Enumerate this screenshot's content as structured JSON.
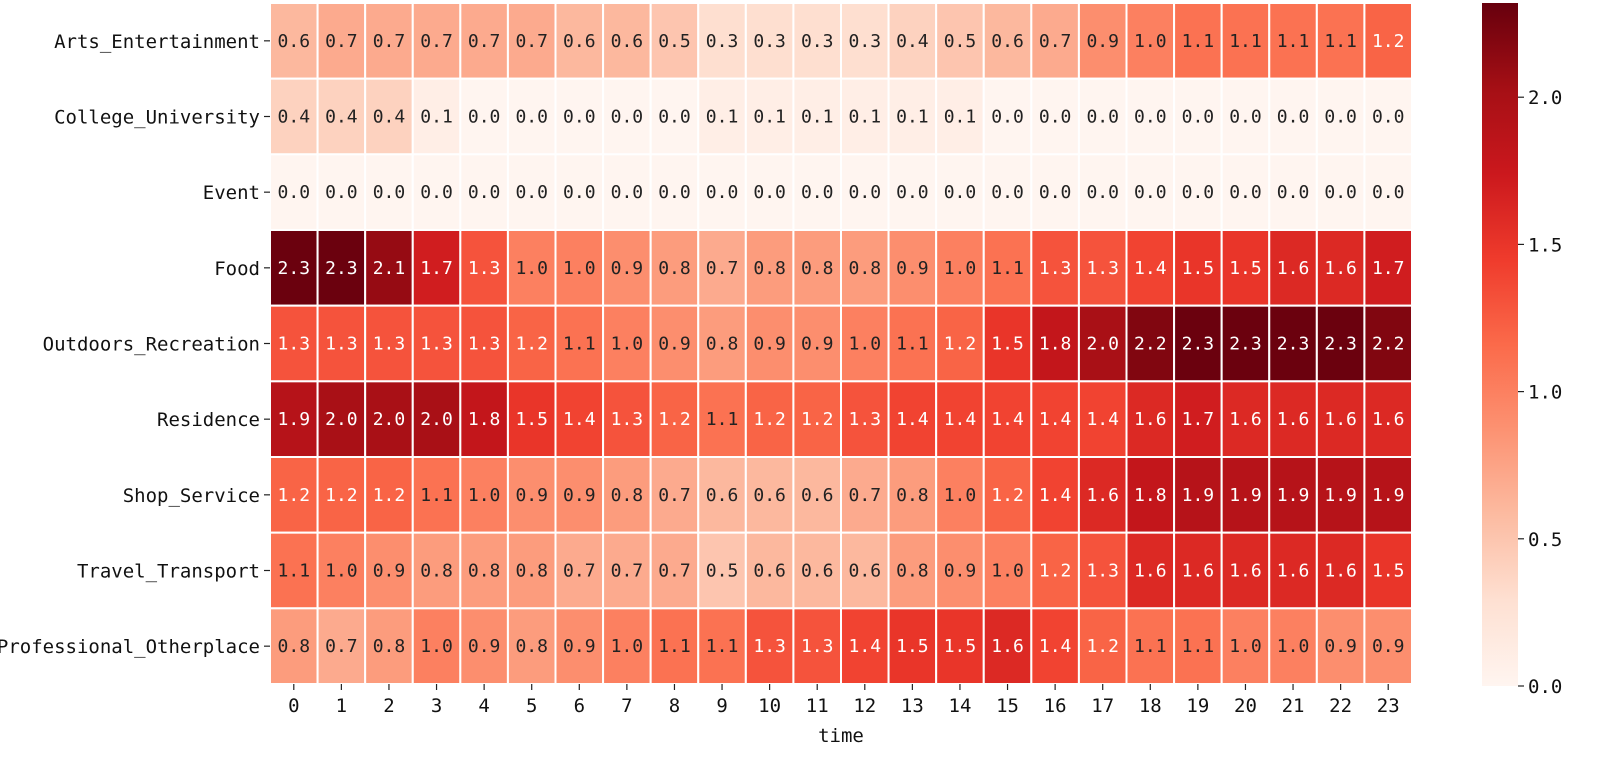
{
  "chart_data": {
    "type": "heatmap",
    "title": "",
    "xlabel": "time",
    "ylabel": "",
    "x": [
      "0",
      "1",
      "2",
      "3",
      "4",
      "5",
      "6",
      "7",
      "8",
      "9",
      "10",
      "11",
      "12",
      "13",
      "14",
      "15",
      "16",
      "17",
      "18",
      "19",
      "20",
      "21",
      "22",
      "23"
    ],
    "y": [
      "Arts_Entertainment",
      "College_University",
      "Event",
      "Food",
      "Outdoors_Recreation",
      "Residence",
      "Shop_Service",
      "Travel_Transport",
      "Professional_Otherplace"
    ],
    "values": [
      [
        0.6,
        0.7,
        0.7,
        0.7,
        0.7,
        0.7,
        0.6,
        0.6,
        0.5,
        0.3,
        0.3,
        0.3,
        0.3,
        0.4,
        0.5,
        0.6,
        0.7,
        0.9,
        1.0,
        1.1,
        1.1,
        1.1,
        1.1,
        1.2
      ],
      [
        0.4,
        0.4,
        0.4,
        0.1,
        0.0,
        0.0,
        0.0,
        0.0,
        0.0,
        0.1,
        0.1,
        0.1,
        0.1,
        0.1,
        0.1,
        0.0,
        0.0,
        0.0,
        0.0,
        0.0,
        0.0,
        0.0,
        0.0,
        0.0
      ],
      [
        0.0,
        0.0,
        0.0,
        0.0,
        0.0,
        0.0,
        0.0,
        0.0,
        0.0,
        0.0,
        0.0,
        0.0,
        0.0,
        0.0,
        0.0,
        0.0,
        0.0,
        0.0,
        0.0,
        0.0,
        0.0,
        0.0,
        0.0,
        0.0
      ],
      [
        2.3,
        2.3,
        2.1,
        1.7,
        1.3,
        1.0,
        1.0,
        0.9,
        0.8,
        0.7,
        0.8,
        0.8,
        0.8,
        0.9,
        1.0,
        1.1,
        1.3,
        1.3,
        1.4,
        1.5,
        1.5,
        1.6,
        1.6,
        1.7
      ],
      [
        1.3,
        1.3,
        1.3,
        1.3,
        1.3,
        1.2,
        1.1,
        1.0,
        0.9,
        0.8,
        0.9,
        0.9,
        1.0,
        1.1,
        1.2,
        1.5,
        1.8,
        2.0,
        2.2,
        2.3,
        2.3,
        2.3,
        2.3,
        2.2
      ],
      [
        1.9,
        2.0,
        2.0,
        2.0,
        1.8,
        1.5,
        1.4,
        1.3,
        1.2,
        1.1,
        1.2,
        1.2,
        1.3,
        1.4,
        1.4,
        1.4,
        1.4,
        1.4,
        1.6,
        1.7,
        1.6,
        1.6,
        1.6,
        1.6
      ],
      [
        1.2,
        1.2,
        1.2,
        1.1,
        1.0,
        0.9,
        0.9,
        0.8,
        0.7,
        0.6,
        0.6,
        0.6,
        0.7,
        0.8,
        1.0,
        1.2,
        1.4,
        1.6,
        1.8,
        1.9,
        1.9,
        1.9,
        1.9,
        1.9
      ],
      [
        1.1,
        1.0,
        0.9,
        0.8,
        0.8,
        0.8,
        0.7,
        0.7,
        0.7,
        0.5,
        0.6,
        0.6,
        0.6,
        0.8,
        0.9,
        1.0,
        1.2,
        1.3,
        1.6,
        1.6,
        1.6,
        1.6,
        1.6,
        1.5
      ],
      [
        0.8,
        0.7,
        0.8,
        1.0,
        0.9,
        0.8,
        0.9,
        1.0,
        1.1,
        1.1,
        1.3,
        1.3,
        1.4,
        1.5,
        1.5,
        1.6,
        1.4,
        1.2,
        1.1,
        1.1,
        1.0,
        1.0,
        0.9,
        0.9
      ]
    ],
    "colorbar": {
      "colormap": "Reds",
      "range": [
        0,
        2.32
      ],
      "ticks": [
        "0.0",
        "0.5",
        "1.0",
        "1.5",
        "2.0"
      ],
      "tick_values": [
        0.0,
        0.5,
        1.0,
        1.5,
        2.0
      ]
    },
    "annotations": true,
    "grid": false,
    "legend": "colorbar-right"
  }
}
